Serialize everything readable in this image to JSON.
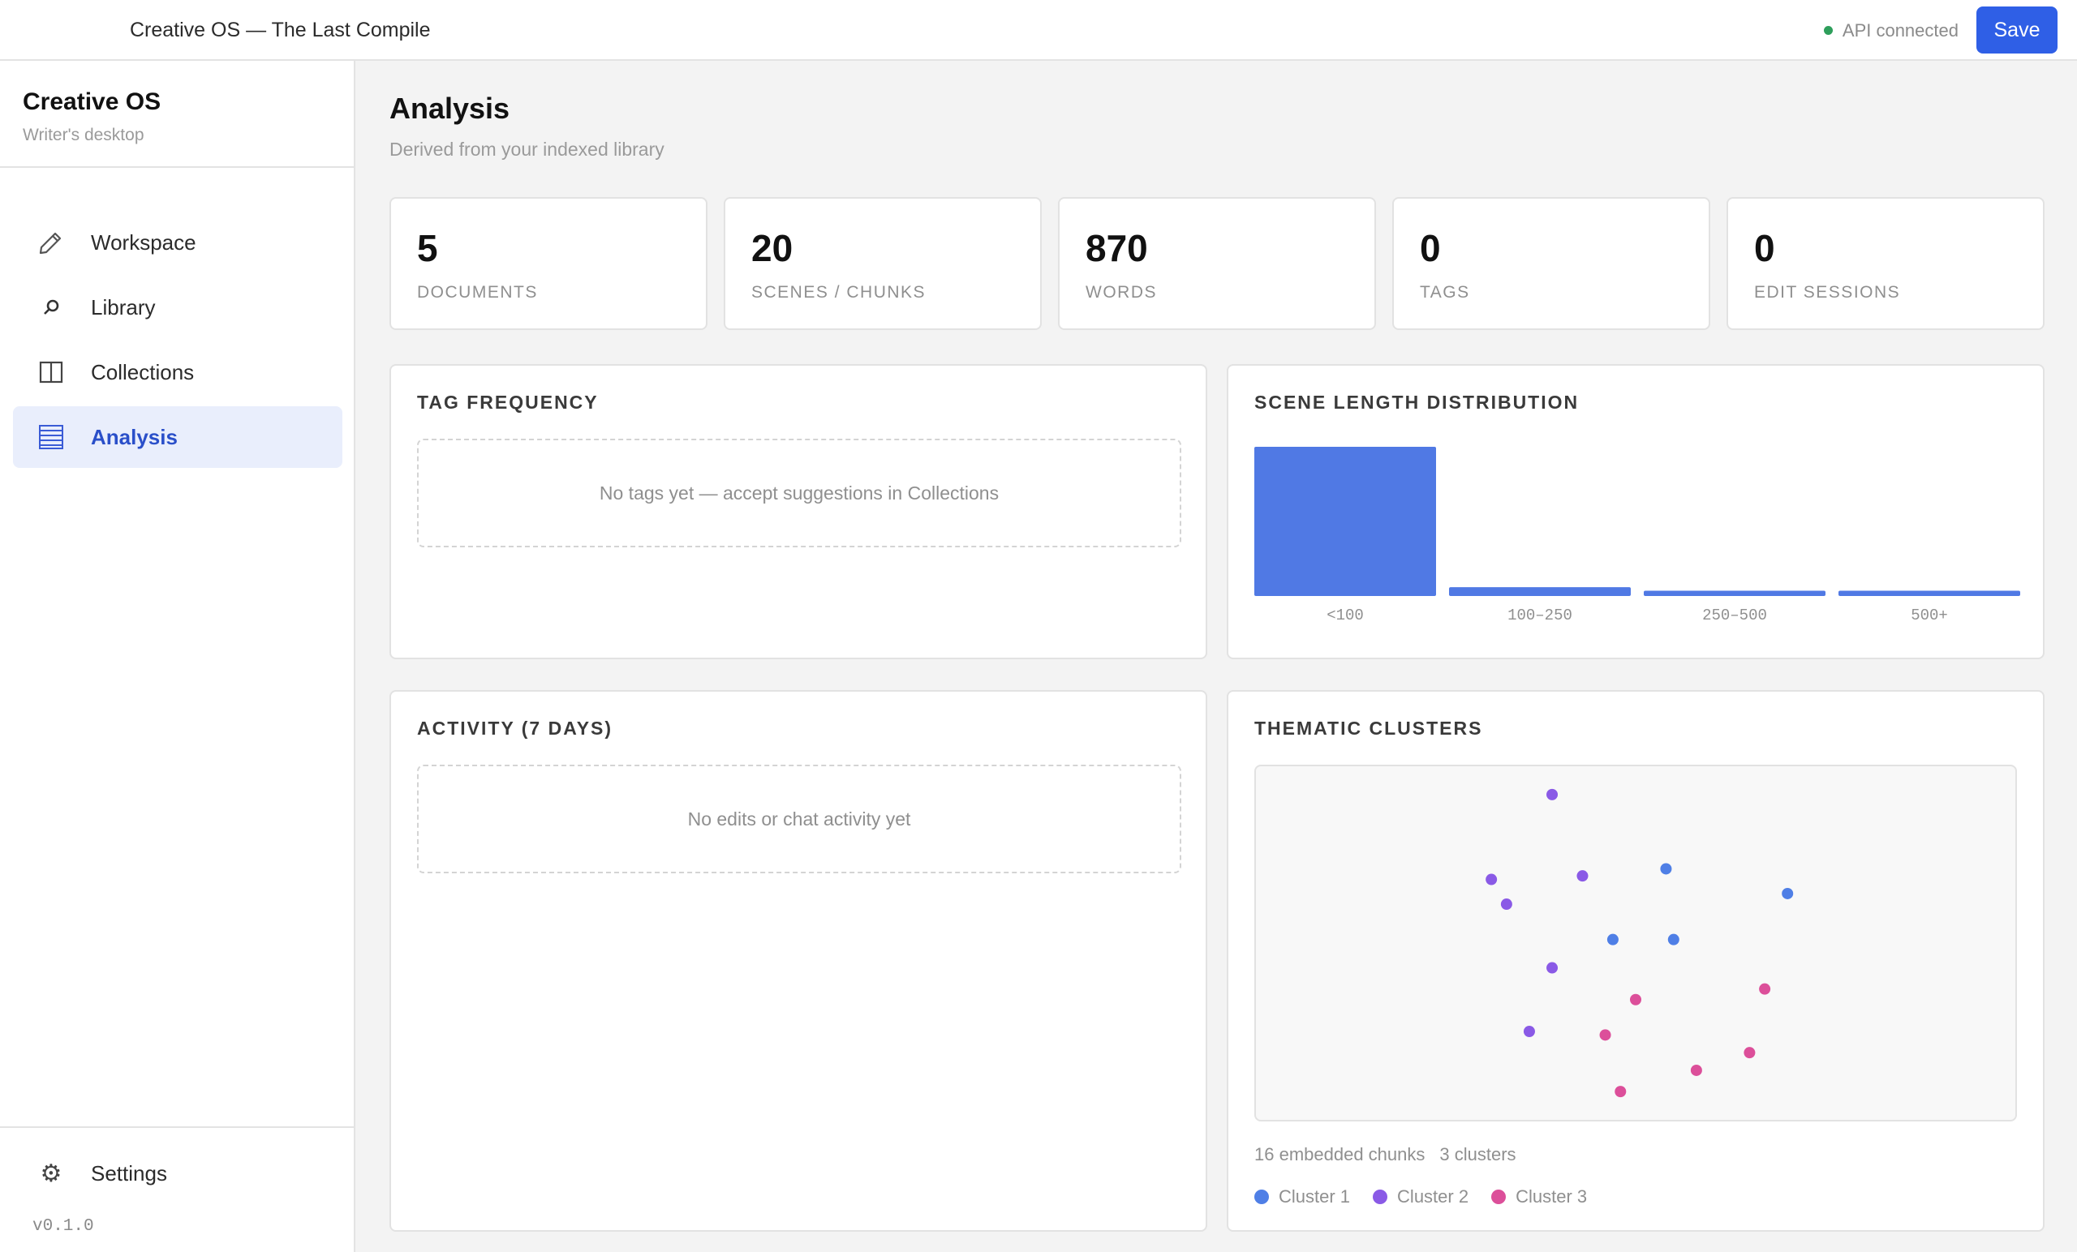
{
  "topbar": {
    "title": "Creative OS — The Last Compile",
    "status": "API connected",
    "save_label": "Save"
  },
  "sidebar": {
    "brand": "Creative OS",
    "tagline": "Writer's desktop",
    "items": [
      {
        "label": "Workspace",
        "icon": "pencil-icon"
      },
      {
        "label": "Library",
        "icon": "search-icon"
      },
      {
        "label": "Collections",
        "icon": "columns-icon"
      },
      {
        "label": "Analysis",
        "icon": "list-icon",
        "active": true
      }
    ],
    "settings": {
      "label": "Settings",
      "icon": "gear-icon"
    },
    "version": "v0.1.0"
  },
  "main": {
    "title": "Analysis",
    "subtitle": "Derived from your indexed library",
    "stats": [
      {
        "value": "5",
        "label": "DOCUMENTS"
      },
      {
        "value": "20",
        "label": "SCENES / CHUNKS"
      },
      {
        "value": "870",
        "label": "WORDS"
      },
      {
        "value": "0",
        "label": "TAGS"
      },
      {
        "value": "0",
        "label": "EDIT SESSIONS"
      }
    ],
    "tag_frequency": {
      "title": "TAG FREQUENCY",
      "empty": "No tags yet — accept suggestions in Collections"
    },
    "scene_length": {
      "title": "SCENE LENGTH DISTRIBUTION"
    },
    "activity": {
      "title": "ACTIVITY (7 DAYS)",
      "empty": "No edits or chat activity yet"
    },
    "clusters": {
      "title": "THEMATIC CLUSTERS",
      "chunks_text": "16 embedded chunks",
      "clusters_text": "3 clusters"
    }
  },
  "colors": {
    "accent": "#2f5fe6",
    "bar": "#5079e4",
    "cluster1": "#4f7fe6",
    "cluster2": "#8a5ae6",
    "cluster3": "#dc4f9a",
    "status_ok": "#2e9e5b"
  },
  "chart_data": [
    {
      "type": "bar",
      "title": "SCENE LENGTH DISTRIBUTION",
      "categories": [
        "<100",
        "100–250",
        "250–500",
        "500+"
      ],
      "values": [
        17,
        1,
        0.6,
        0.6
      ],
      "ylim": [
        0,
        17
      ]
    },
    {
      "type": "scatter",
      "title": "THEMATIC CLUSTERS",
      "xlim": [
        0,
        1
      ],
      "ylim": [
        0,
        1
      ],
      "series": [
        {
          "name": "Cluster 1",
          "color": "#4f7fe6",
          "points": [
            [
              0.54,
              0.71
            ],
            [
              0.7,
              0.64
            ],
            [
              0.47,
              0.51
            ],
            [
              0.55,
              0.51
            ]
          ]
        },
        {
          "name": "Cluster 2",
          "color": "#8a5ae6",
          "points": [
            [
              0.39,
              0.92
            ],
            [
              0.31,
              0.68
            ],
            [
              0.43,
              0.69
            ],
            [
              0.33,
              0.61
            ],
            [
              0.39,
              0.43
            ],
            [
              0.36,
              0.25
            ]
          ]
        },
        {
          "name": "Cluster 3",
          "color": "#dc4f9a",
          "points": [
            [
              0.67,
              0.37
            ],
            [
              0.5,
              0.34
            ],
            [
              0.46,
              0.24
            ],
            [
              0.58,
              0.14
            ],
            [
              0.65,
              0.19
            ],
            [
              0.48,
              0.08
            ]
          ]
        }
      ]
    }
  ]
}
